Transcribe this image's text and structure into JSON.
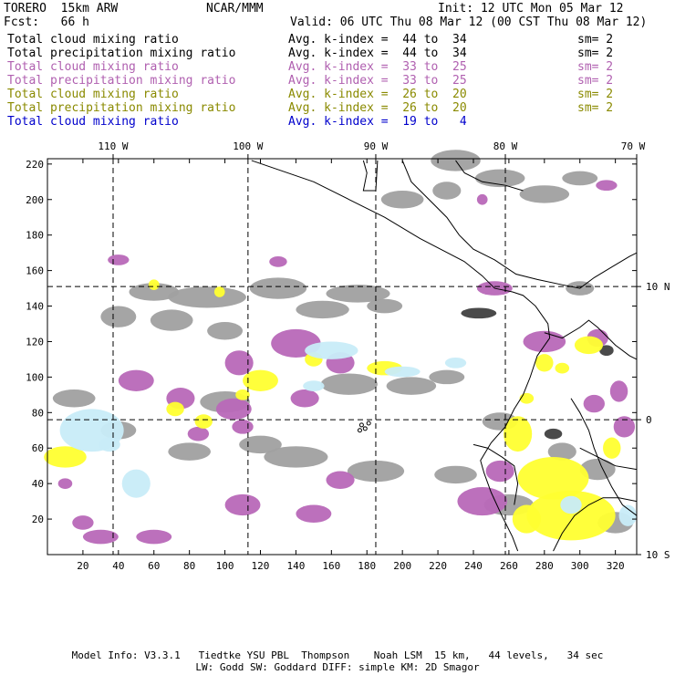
{
  "header": {
    "model": "TORERO  15km ARW",
    "org": "NCAR/MMM",
    "init": "Init: 12 UTC Mon 05 Mar 12",
    "fcst": "Fcst:   66 h",
    "valid": "Valid: 06 UTC Thu 08 Mar 12 (00 CST Thu 08 Mar 12)"
  },
  "legend": [
    {
      "field": "Total cloud mixing ratio",
      "index": "Avg. k-index =  44 to  34",
      "sm": "sm= 2",
      "color": "#000000"
    },
    {
      "field": "Total precipitation mixing ratio",
      "index": "Avg. k-index =  44 to  34",
      "sm": "sm= 2",
      "color": "#000000"
    },
    {
      "field": "Total cloud mixing ratio",
      "index": "Avg. k-index =  33 to  25",
      "sm": "sm= 2",
      "color": "#b060b0"
    },
    {
      "field": "Total precipitation mixing ratio",
      "index": "Avg. k-index =  33 to  25",
      "sm": "sm= 2",
      "color": "#b060b0"
    },
    {
      "field": "Total cloud mixing ratio",
      "index": "Avg. k-index =  26 to  20",
      "sm": "sm= 2",
      "color": "#8a8a00"
    },
    {
      "field": "Total precipitation mixing ratio",
      "index": "Avg. k-index =  26 to  20",
      "sm": "sm= 2",
      "color": "#8a8a00"
    },
    {
      "field": "Total cloud mixing ratio",
      "index": "Avg. k-index =  19 to   4",
      "sm": "",
      "color": "#0000cc"
    }
  ],
  "map": {
    "lon_labels": [
      "110 W",
      "100 W",
      "90 W",
      "80 W",
      "70 W"
    ],
    "lat_labels": [
      "10 N",
      "0",
      "10 S"
    ],
    "x_ticks": [
      "20",
      "40",
      "60",
      "80",
      "100",
      "120",
      "140",
      "160",
      "180",
      "200",
      "220",
      "240",
      "260",
      "280",
      "300",
      "320"
    ],
    "y_ticks": [
      "20",
      "40",
      "60",
      "80",
      "100",
      "120",
      "140",
      "160",
      "180",
      "200",
      "220"
    ],
    "colors": {
      "gray": "#a0a0a0",
      "dark": "#404040",
      "magenta": "#b868b8",
      "yellow": "#ffff30",
      "cyan": "#c8ecf8"
    }
  },
  "footer": {
    "line1": "Model Info: V3.3.1   Tiedtke YSU PBL  Thompson    Noah LSM  15 km,   44 levels,   34 sec",
    "line2": "LW: Godd SW: Goddard DIFF: simple KM: 2D Smagor"
  }
}
